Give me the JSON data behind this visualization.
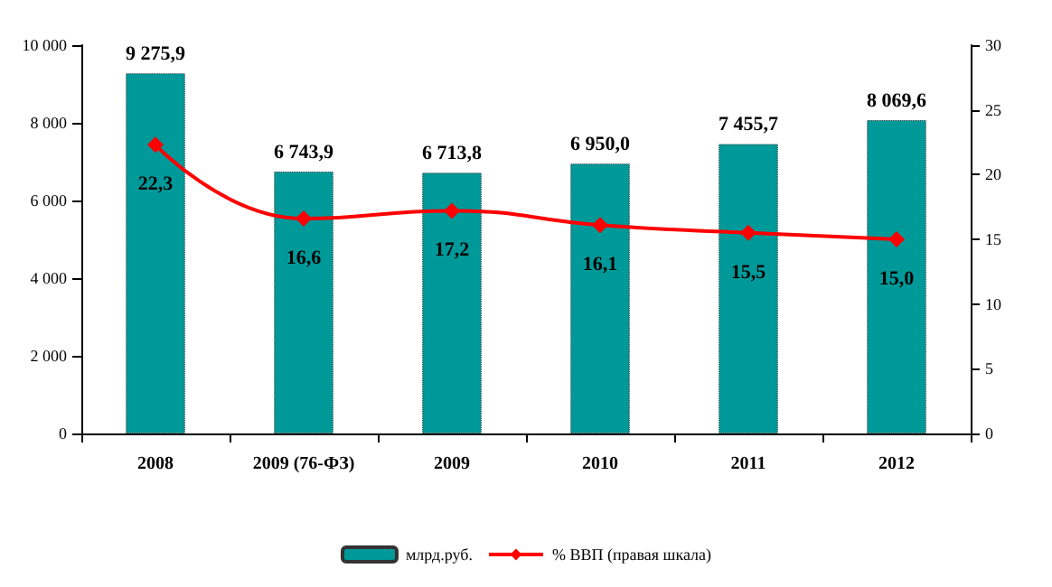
{
  "chart_data": {
    "type": "bar",
    "categories": [
      "2008",
      "2009 (76-ФЗ)",
      "2009",
      "2010",
      "2011",
      "2012"
    ],
    "series": [
      {
        "name": "млрд.руб.",
        "color": "#009999",
        "values": [
          9275.9,
          6743.9,
          6713.8,
          6950.0,
          7455.7,
          8069.6
        ],
        "value_labels": [
          "9 275,9",
          "6 743,9",
          "6 713,8",
          "6 950,0",
          "7 455,7",
          "8 069,6"
        ]
      },
      {
        "name": "% ВВП (правая шкала)",
        "type": "line",
        "axis": "y2",
        "color": "#ff0000",
        "marker": "diamond",
        "values": [
          22.3,
          16.6,
          17.2,
          16.1,
          15.5,
          15.0
        ],
        "value_labels": [
          "22,3",
          "16,6",
          "17,2",
          "16,1",
          "15,5",
          "15,0"
        ]
      }
    ],
    "ylim": [
      0,
      10000
    ],
    "yticks": [
      0,
      {
        "value": 2000,
        "label": "2 000"
      },
      {
        "value": 4000,
        "label": "4 000"
      },
      {
        "value": 6000,
        "label": "6 000"
      },
      {
        "value": 8000,
        "label": "8 000"
      },
      {
        "value": 10000,
        "label": "10 000"
      }
    ],
    "y2lim": [
      0,
      30
    ],
    "y2ticks": [
      0,
      5,
      10,
      15,
      20,
      25,
      30
    ],
    "grid": false,
    "legend": "bottom"
  }
}
